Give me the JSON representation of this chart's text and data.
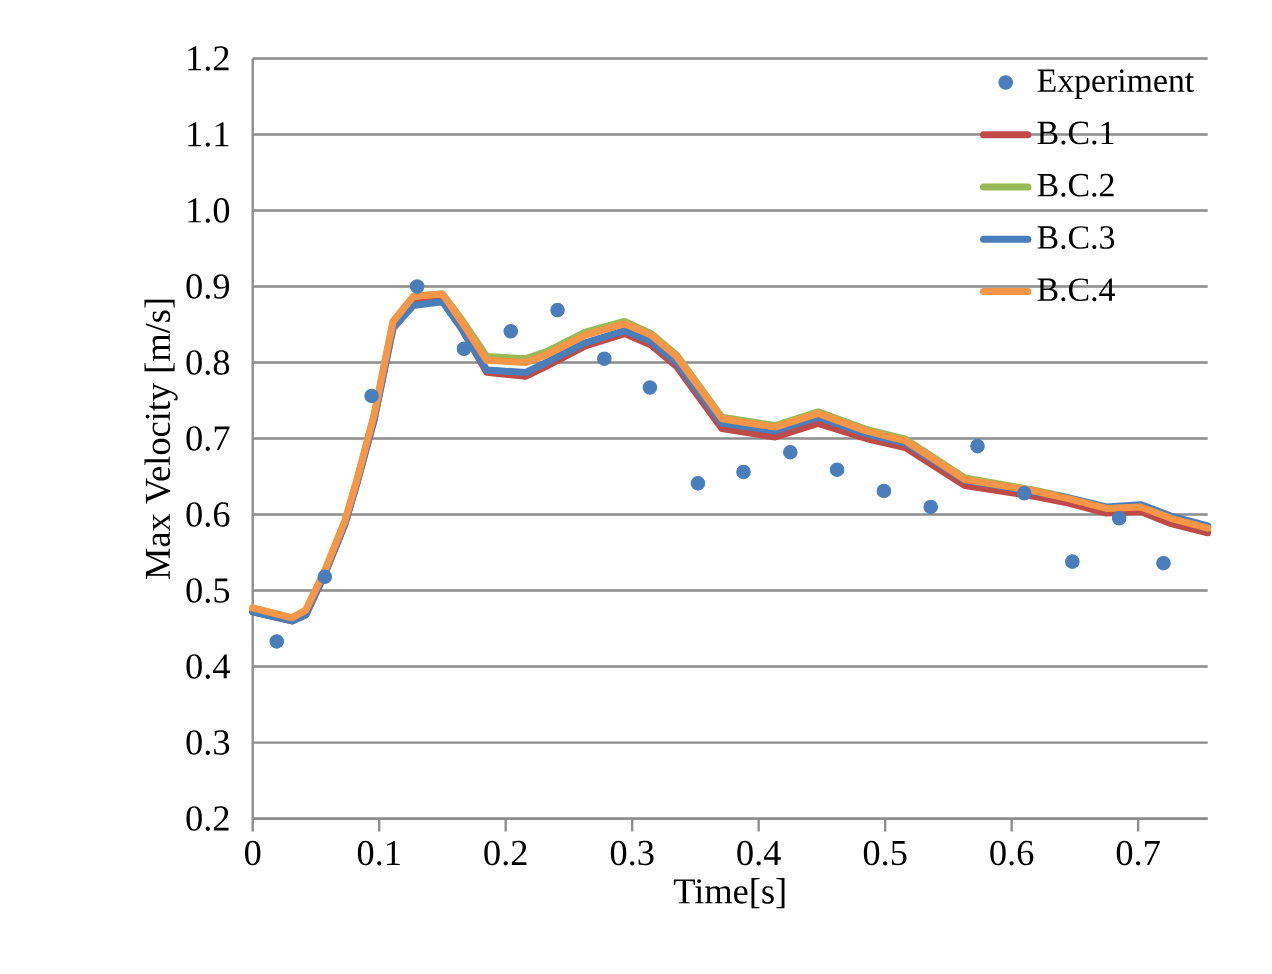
{
  "chart_data": {
    "type": "line",
    "xlabel": "Time[s]",
    "ylabel": "Max Velocity [m/s]",
    "xlim": [
      0,
      0.755
    ],
    "ylim": [
      0.2,
      1.2
    ],
    "xticks": [
      0,
      0.1,
      0.2,
      0.3,
      0.4,
      0.5,
      0.6,
      0.7
    ],
    "yticks": [
      {
        "value": 0.2,
        "label": "0.2"
      },
      {
        "value": 0.3,
        "label": "0.3"
      },
      {
        "value": 0.4,
        "label": "0.4"
      },
      {
        "value": 0.5,
        "label": "0.5"
      },
      {
        "value": 0.6,
        "label": "0.6"
      },
      {
        "value": 0.7,
        "label": "0.7"
      },
      {
        "value": 0.8,
        "label": "0.8"
      },
      {
        "value": 0.9,
        "label": "0.9"
      },
      {
        "value": 1.0,
        "label": "1.0"
      },
      {
        "value": 1.1,
        "label": "1.1"
      },
      {
        "value": 1.2,
        "label": "1.2"
      }
    ],
    "grid": "y",
    "legend": "top right",
    "series": [
      {
        "name": "Experiment",
        "type": "scatter",
        "color": "#4a7ebb",
        "x": [
          0.019,
          0.057,
          0.094,
          0.13,
          0.167,
          0.204,
          0.241,
          0.278,
          0.314,
          0.352,
          0.388,
          0.425,
          0.462,
          0.499,
          0.536,
          0.573,
          0.61,
          0.648,
          0.685,
          0.72
        ],
        "values": [
          0.433,
          0.518,
          0.756,
          0.9,
          0.818,
          0.841,
          0.869,
          0.805,
          0.767,
          0.641,
          0.656,
          0.682,
          0.659,
          0.631,
          0.61,
          0.69,
          0.628,
          0.538,
          0.595,
          0.536
        ]
      },
      {
        "name": "B.C.1",
        "type": "line",
        "color": "#be4b48",
        "x": [
          0,
          0.031,
          0.042,
          0.057,
          0.073,
          0.083,
          0.096,
          0.111,
          0.127,
          0.15,
          0.165,
          0.185,
          0.216,
          0.232,
          0.263,
          0.294,
          0.315,
          0.335,
          0.371,
          0.413,
          0.447,
          0.485,
          0.516,
          0.563,
          0.618,
          0.645,
          0.675,
          0.702,
          0.726,
          0.755
        ],
        "values": [
          0.472,
          0.46,
          0.468,
          0.522,
          0.588,
          0.645,
          0.725,
          0.848,
          0.878,
          0.882,
          0.845,
          0.787,
          0.782,
          0.795,
          0.822,
          0.838,
          0.823,
          0.795,
          0.713,
          0.702,
          0.72,
          0.7,
          0.688,
          0.638,
          0.624,
          0.615,
          0.602,
          0.604,
          0.588,
          0.576
        ]
      },
      {
        "name": "B.C.2",
        "type": "line",
        "color": "#98b954",
        "x": [
          0,
          0.031,
          0.042,
          0.057,
          0.073,
          0.083,
          0.096,
          0.111,
          0.127,
          0.15,
          0.165,
          0.185,
          0.216,
          0.232,
          0.263,
          0.294,
          0.315,
          0.335,
          0.371,
          0.413,
          0.447,
          0.485,
          0.516,
          0.563,
          0.618,
          0.645,
          0.675
        ],
        "values": [
          0.477,
          0.464,
          0.474,
          0.526,
          0.592,
          0.649,
          0.731,
          0.854,
          0.887,
          0.89,
          0.857,
          0.808,
          0.805,
          0.814,
          0.84,
          0.854,
          0.838,
          0.81,
          0.728,
          0.717,
          0.735,
          0.712,
          0.699,
          0.648,
          0.632,
          0.622,
          0.609
        ]
      },
      {
        "name": "B.C.3",
        "type": "line",
        "color": "#4a7ebb",
        "x": [
          0,
          0.031,
          0.042,
          0.057,
          0.073,
          0.083,
          0.096,
          0.111,
          0.127,
          0.15,
          0.165,
          0.185,
          0.216,
          0.232,
          0.263,
          0.294,
          0.315,
          0.335,
          0.371,
          0.413,
          0.447,
          0.485,
          0.516,
          0.563,
          0.618,
          0.645,
          0.675,
          0.702,
          0.726,
          0.755
        ],
        "values": [
          0.472,
          0.46,
          0.468,
          0.522,
          0.588,
          0.645,
          0.725,
          0.845,
          0.875,
          0.88,
          0.845,
          0.79,
          0.787,
          0.8,
          0.826,
          0.842,
          0.828,
          0.8,
          0.72,
          0.71,
          0.728,
          0.706,
          0.694,
          0.645,
          0.63,
          0.622,
          0.61,
          0.613,
          0.598,
          0.585
        ]
      },
      {
        "name": "B.C.4",
        "type": "line",
        "color": "#f79646",
        "x": [
          0,
          0.031,
          0.042,
          0.057,
          0.073,
          0.083,
          0.096,
          0.111,
          0.127,
          0.15,
          0.165,
          0.185,
          0.216,
          0.232,
          0.263,
          0.294,
          0.315,
          0.335,
          0.371,
          0.413,
          0.447,
          0.485,
          0.516,
          0.563,
          0.618,
          0.645,
          0.675,
          0.702,
          0.726,
          0.755
        ],
        "values": [
          0.477,
          0.464,
          0.474,
          0.526,
          0.592,
          0.649,
          0.731,
          0.854,
          0.887,
          0.89,
          0.854,
          0.803,
          0.8,
          0.81,
          0.836,
          0.851,
          0.836,
          0.808,
          0.726,
          0.715,
          0.733,
          0.71,
          0.697,
          0.646,
          0.631,
          0.621,
          0.608,
          0.61,
          0.595,
          0.582
        ]
      }
    ]
  }
}
